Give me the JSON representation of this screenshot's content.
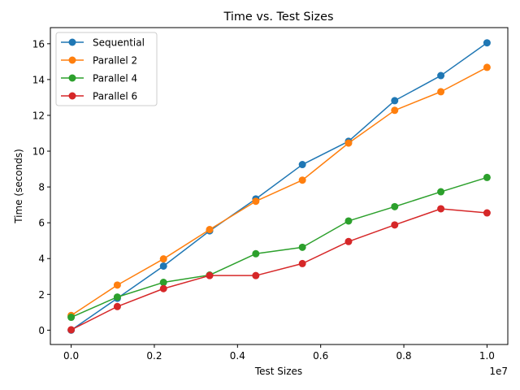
{
  "chart_data": {
    "type": "line",
    "title": "Time vs. Test Sizes",
    "xlabel": "Test Sizes",
    "ylabel": "Time (seconds)",
    "x_offset_label": "1e7",
    "xlim": [
      -0.05,
      1.05
    ],
    "ylim": [
      -0.8,
      16.9
    ],
    "x_ticks": [
      0.0,
      0.2,
      0.4,
      0.6,
      0.8,
      1.0
    ],
    "x_tick_labels": [
      "0.0",
      "0.2",
      "0.4",
      "0.6",
      "0.8",
      "1.0"
    ],
    "y_ticks": [
      0,
      2,
      4,
      6,
      8,
      10,
      12,
      14,
      16
    ],
    "y_tick_labels": [
      "0",
      "2",
      "4",
      "6",
      "8",
      "10",
      "12",
      "14",
      "16"
    ],
    "x": [
      0.0,
      0.111,
      0.222,
      0.333,
      0.444,
      0.556,
      0.667,
      0.778,
      0.889,
      1.0
    ],
    "grid": false,
    "legend_position": "upper-left",
    "series": [
      {
        "name": "Sequential",
        "color": "#1f77b4",
        "values": [
          0.0,
          1.78,
          3.58,
          5.55,
          7.33,
          9.25,
          10.55,
          12.82,
          14.22,
          16.05
        ]
      },
      {
        "name": "Parallel 2",
        "color": "#ff7f0e",
        "values": [
          0.82,
          2.52,
          3.98,
          5.62,
          7.2,
          8.38,
          10.45,
          12.28,
          13.32,
          14.68
        ]
      },
      {
        "name": "Parallel 4",
        "color": "#2ca02c",
        "values": [
          0.72,
          1.85,
          2.67,
          3.08,
          4.27,
          4.63,
          6.1,
          6.9,
          7.73,
          8.53
        ]
      },
      {
        "name": "Parallel 6",
        "color": "#d62728",
        "values": [
          0.02,
          1.32,
          2.32,
          3.05,
          3.05,
          3.72,
          4.95,
          5.88,
          6.78,
          6.55
        ]
      }
    ]
  }
}
